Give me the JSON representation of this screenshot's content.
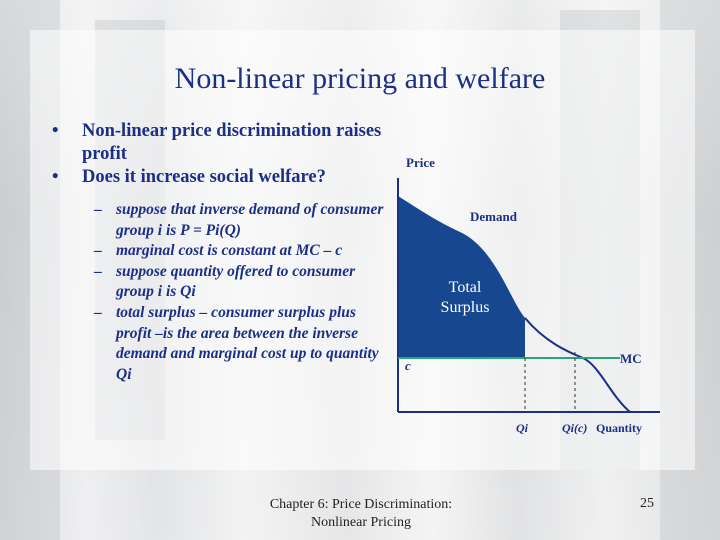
{
  "slide": {
    "title": "Non-linear pricing and welfare",
    "bullets": [
      {
        "marker": "•",
        "text": "Non-linear price discrimination raises profit"
      },
      {
        "marker": "•",
        "text": "Does it increase social welfare?"
      }
    ],
    "sub_bullets": [
      {
        "marker": "–",
        "text": "suppose that inverse demand of consumer group i is P = Pi(Q)"
      },
      {
        "marker": "–",
        "text": "marginal cost is constant at MC – c"
      },
      {
        "marker": "–",
        "text": "suppose quantity offered to consumer group i is Qi"
      },
      {
        "marker": "–",
        "text": "total surplus – consumer surplus plus profit –is the area between the inverse demand and marginal cost up to quantity Qi"
      }
    ]
  },
  "diagram": {
    "price_label": "Price",
    "demand_label": "Demand",
    "area_label_line1": "Total",
    "area_label_line2": "Surplus",
    "c_label": "c",
    "mc_label": "MC",
    "qi_label": "Qi",
    "qic_label": "Qi(c)",
    "quantity_label": "Quantity",
    "colors": {
      "surplus_fill": "#17488f",
      "axis": "#1b2f86",
      "mc_line": "#2aa57a"
    }
  },
  "footer": {
    "line1": "Chapter 6: Price Discrimination:",
    "line2": "Nonlinear Pricing",
    "page": "25"
  }
}
